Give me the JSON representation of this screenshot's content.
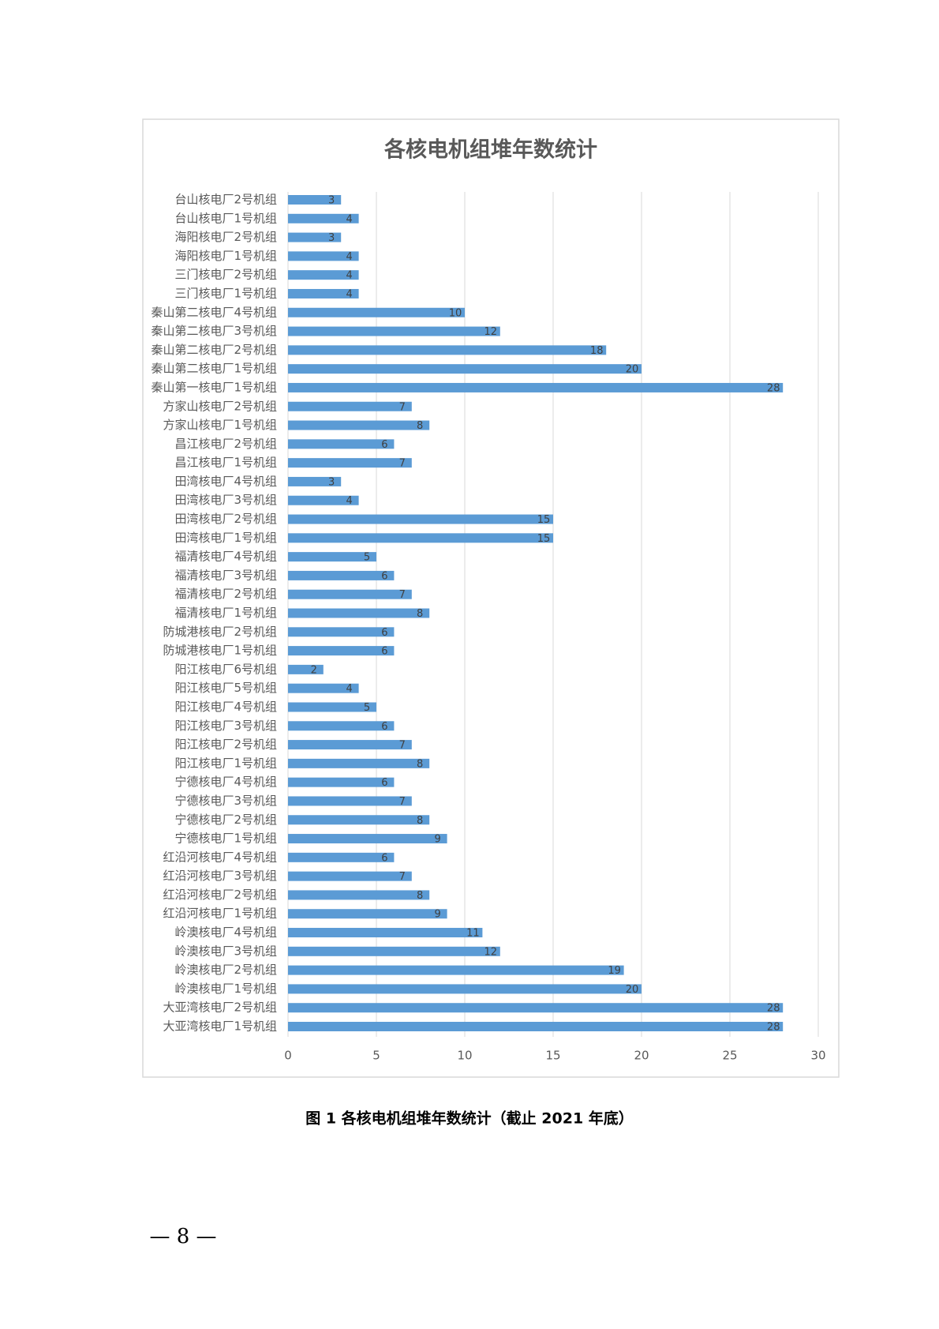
{
  "chart_data": {
    "type": "bar",
    "orientation": "horizontal",
    "title": "各核电机组堆年数统计",
    "categories": [
      "台山核电厂2号机组",
      "台山核电厂1号机组",
      "海阳核电厂2号机组",
      "海阳核电厂1号机组",
      "三门核电厂2号机组",
      "三门核电厂1号机组",
      "秦山第二核电厂4号机组",
      "秦山第二核电厂3号机组",
      "秦山第二核电厂2号机组",
      "秦山第二核电厂1号机组",
      "秦山第一核电厂1号机组",
      "方家山核电厂2号机组",
      "方家山核电厂1号机组",
      "昌江核电厂2号机组",
      "昌江核电厂1号机组",
      "田湾核电厂4号机组",
      "田湾核电厂3号机组",
      "田湾核电厂2号机组",
      "田湾核电厂1号机组",
      "福清核电厂4号机组",
      "福清核电厂3号机组",
      "福清核电厂2号机组",
      "福清核电厂1号机组",
      "防城港核电厂2号机组",
      "防城港核电厂1号机组",
      "阳江核电厂6号机组",
      "阳江核电厂5号机组",
      "阳江核电厂4号机组",
      "阳江核电厂3号机组",
      "阳江核电厂2号机组",
      "阳江核电厂1号机组",
      "宁德核电厂4号机组",
      "宁德核电厂3号机组",
      "宁德核电厂2号机组",
      "宁德核电厂1号机组",
      "红沿河核电厂4号机组",
      "红沿河核电厂3号机组",
      "红沿河核电厂2号机组",
      "红沿河核电厂1号机组",
      "岭澳核电厂4号机组",
      "岭澳核电厂3号机组",
      "岭澳核电厂2号机组",
      "岭澳核电厂1号机组",
      "大亚湾核电厂2号机组",
      "大亚湾核电厂1号机组"
    ],
    "values": [
      3,
      4,
      3,
      4,
      4,
      4,
      10,
      12,
      18,
      20,
      28,
      7,
      8,
      6,
      7,
      3,
      4,
      15,
      15,
      5,
      6,
      7,
      8,
      6,
      6,
      2,
      4,
      5,
      6,
      7,
      8,
      6,
      7,
      8,
      9,
      6,
      7,
      8,
      9,
      11,
      12,
      19,
      20,
      28,
      28
    ],
    "color": "#5b9bd5",
    "xlim": [
      0,
      30
    ],
    "xticks": [
      0,
      5,
      10,
      15,
      20,
      25,
      30
    ],
    "grid": true
  },
  "caption": "图 1  各核电机组堆年数统计（截止 2021 年底）",
  "page_number": "— 8 —"
}
